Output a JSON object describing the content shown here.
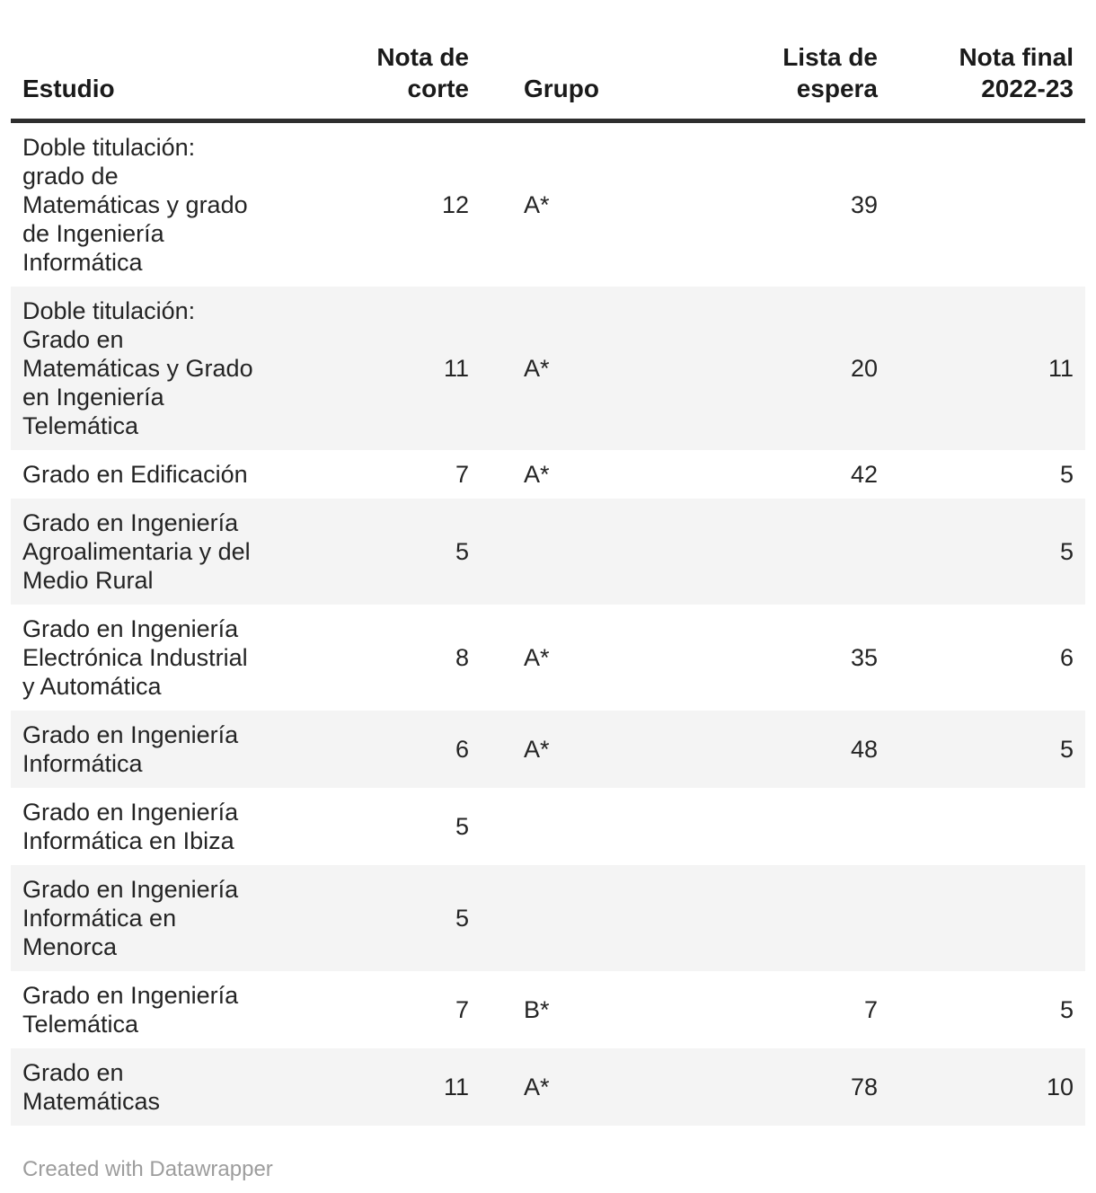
{
  "chart_data": {
    "type": "table",
    "title": "",
    "columns": [
      "Estudio",
      "Nota de corte",
      "Grupo",
      "Lista de espera",
      "Nota final 2022-23"
    ],
    "rows": [
      [
        "Doble titulación: grado de Matemáticas y grado de Ingeniería Informática",
        12,
        "A*",
        39,
        null
      ],
      [
        "Doble titulación: Grado en Matemáticas y Grado en Ingeniería Telemática",
        11,
        "A*",
        20,
        11
      ],
      [
        "Grado en Edificación",
        7,
        "A*",
        42,
        5
      ],
      [
        "Grado en Ingeniería Agroalimentaria y del Medio Rural",
        5,
        null,
        null,
        5
      ],
      [
        "Grado en Ingeniería Electrónica Industrial y Automática",
        8,
        "A*",
        35,
        6
      ],
      [
        "Grado en Ingeniería Informática",
        6,
        "A*",
        48,
        5
      ],
      [
        "Grado en Ingeniería Informática en Ibiza",
        5,
        null,
        null,
        null
      ],
      [
        "Grado en Ingeniería Informática en Menorca",
        5,
        null,
        null,
        null
      ],
      [
        "Grado en Ingeniería Telemática",
        7,
        "B*",
        7,
        5
      ],
      [
        "Grado en Matemáticas",
        11,
        "A*",
        78,
        10
      ]
    ],
    "layout_hints": {
      "zebra_striping": true,
      "header_rule": true,
      "numeric_columns_right_aligned": true
    }
  },
  "table": {
    "columns": [
      "Estudio",
      "Nota de\ncorte",
      "Grupo",
      "Lista de\nespera",
      "Nota final\n2022-23"
    ],
    "rows": [
      {
        "name": "Doble titulación:\ngrado de\nMatemáticas y grado\nde Ingeniería\nInformática",
        "nota_corte": "12",
        "grupo": "A*",
        "lista_espera": "39",
        "nota_final": ""
      },
      {
        "name": "Doble titulación:\nGrado en\nMatemáticas y Grado\nen Ingeniería\nTelemática",
        "nota_corte": "11",
        "grupo": "A*",
        "lista_espera": "20",
        "nota_final": "11"
      },
      {
        "name": "Grado en Edificación",
        "nota_corte": "7",
        "grupo": "A*",
        "lista_espera": "42",
        "nota_final": "5"
      },
      {
        "name": "Grado en Ingeniería\nAgroalimentaria y del\nMedio Rural",
        "nota_corte": "5",
        "grupo": "",
        "lista_espera": "",
        "nota_final": "5"
      },
      {
        "name": "Grado en Ingeniería\nElectrónica Industrial\ny Automática",
        "nota_corte": "8",
        "grupo": "A*",
        "lista_espera": "35",
        "nota_final": "6"
      },
      {
        "name": "Grado en Ingeniería\nInformática",
        "nota_corte": "6",
        "grupo": "A*",
        "lista_espera": "48",
        "nota_final": "5"
      },
      {
        "name": "Grado en Ingeniería\nInformática en Ibiza",
        "nota_corte": "5",
        "grupo": "",
        "lista_espera": "",
        "nota_final": ""
      },
      {
        "name": "Grado en Ingeniería\nInformática en\nMenorca",
        "nota_corte": "5",
        "grupo": "",
        "lista_espera": "",
        "nota_final": ""
      },
      {
        "name": "Grado en Ingeniería\nTelemática",
        "nota_corte": "7",
        "grupo": "B*",
        "lista_espera": "7",
        "nota_final": "5"
      },
      {
        "name": "Grado en\nMatemáticas",
        "nota_corte": "11",
        "grupo": "A*",
        "lista_espera": "78",
        "nota_final": "10"
      }
    ]
  },
  "footer": {
    "credit": "Created with Datawrapper"
  },
  "colors": {
    "background": "#ffffff",
    "text": "#242424",
    "header_text": "#1a1a1a",
    "header_rule": "#2e2e2e",
    "stripe": "#f4f4f4",
    "footer_text": "#9d9d9d"
  }
}
